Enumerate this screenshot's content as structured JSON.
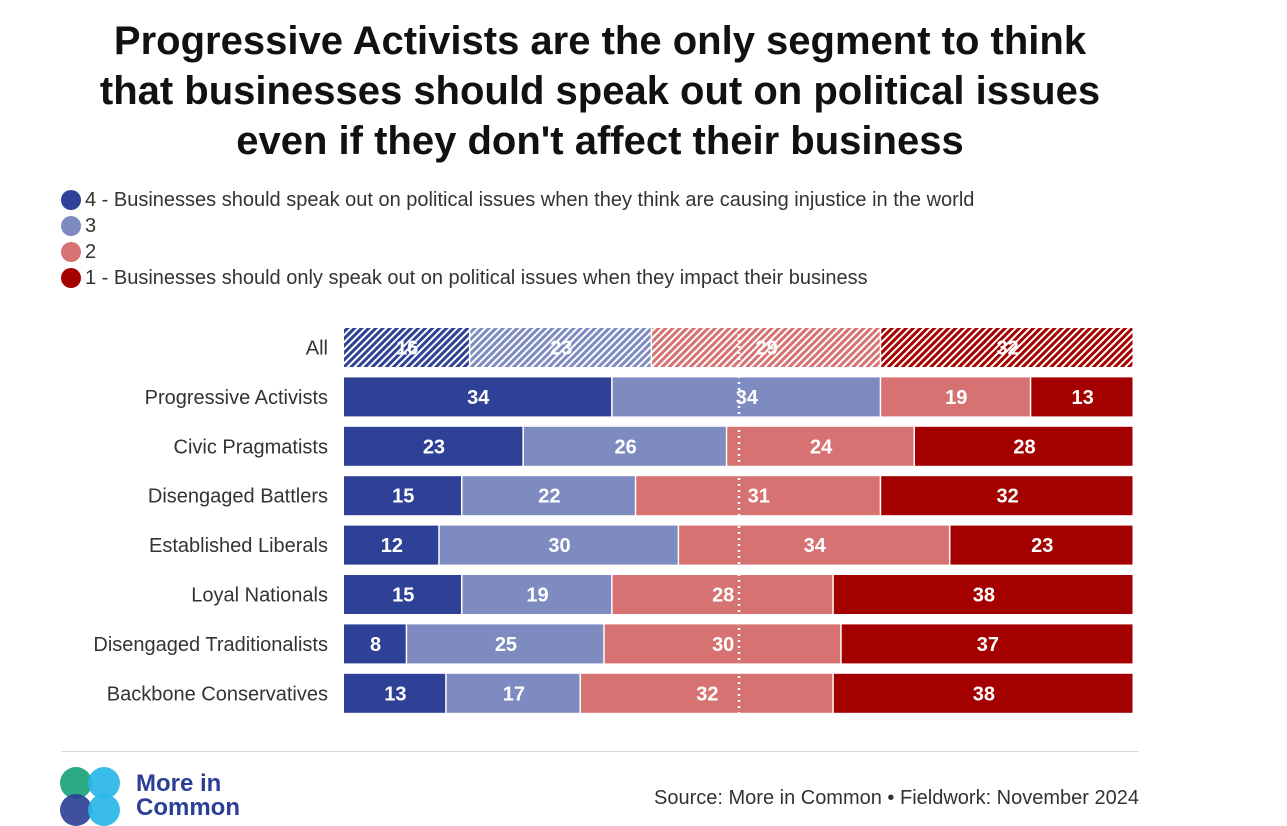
{
  "title_lines": [
    "Progressive Activists are the only segment to think",
    "that businesses should speak out on political issues",
    "even if they don't affect their business"
  ],
  "legend": [
    {
      "label": "4 - Businesses should speak out on political issues when they think are causing injustice in the world",
      "color": "#2e4196"
    },
    {
      "label": "3",
      "color": "#7d8bc0"
    },
    {
      "label": "2",
      "color": "#d67271"
    },
    {
      "label": "1 - Businesses should only speak out on political issues when they impact their business",
      "color": "#a50000"
    }
  ],
  "chart_data": {
    "type": "bar",
    "orientation": "horizontal",
    "stacked": true,
    "percent_stacked": true,
    "categories": [
      "All",
      "Progressive Activists",
      "Civic Pragmatists",
      "Disengaged Battlers",
      "Established Liberals",
      "Loyal Nationals",
      "Disengaged Traditionalists",
      "Backbone Conservatives"
    ],
    "series": [
      {
        "name": "4 - Businesses should speak out on political issues when they think are causing injustice in the world",
        "color": "#2e4196",
        "values": [
          16,
          34,
          23,
          15,
          12,
          15,
          8,
          13
        ]
      },
      {
        "name": "3",
        "color": "#7d8bc0",
        "values": [
          23,
          34,
          26,
          22,
          30,
          19,
          25,
          17
        ]
      },
      {
        "name": "2",
        "color": "#d67271",
        "values": [
          29,
          19,
          24,
          31,
          34,
          28,
          30,
          32
        ]
      },
      {
        "name": "1 - Businesses should only speak out on political issues when they impact their business",
        "color": "#a50000",
        "values": [
          32,
          13,
          28,
          32,
          23,
          38,
          37,
          38
        ]
      }
    ],
    "highlight_category": "All",
    "highlight_style": "hatched",
    "midline": 50,
    "legend_position": "top-left",
    "xlabel": "",
    "ylabel": "",
    "grid": false
  },
  "logo": {
    "line1": "More in",
    "line2": "Common",
    "color": "#2b3f97",
    "circle_colors": [
      "#1aa37a",
      "#29b6e8",
      "#2e4196",
      "#29b6e8"
    ]
  },
  "source": "Source: More in Common • Fieldwork: November 2024"
}
